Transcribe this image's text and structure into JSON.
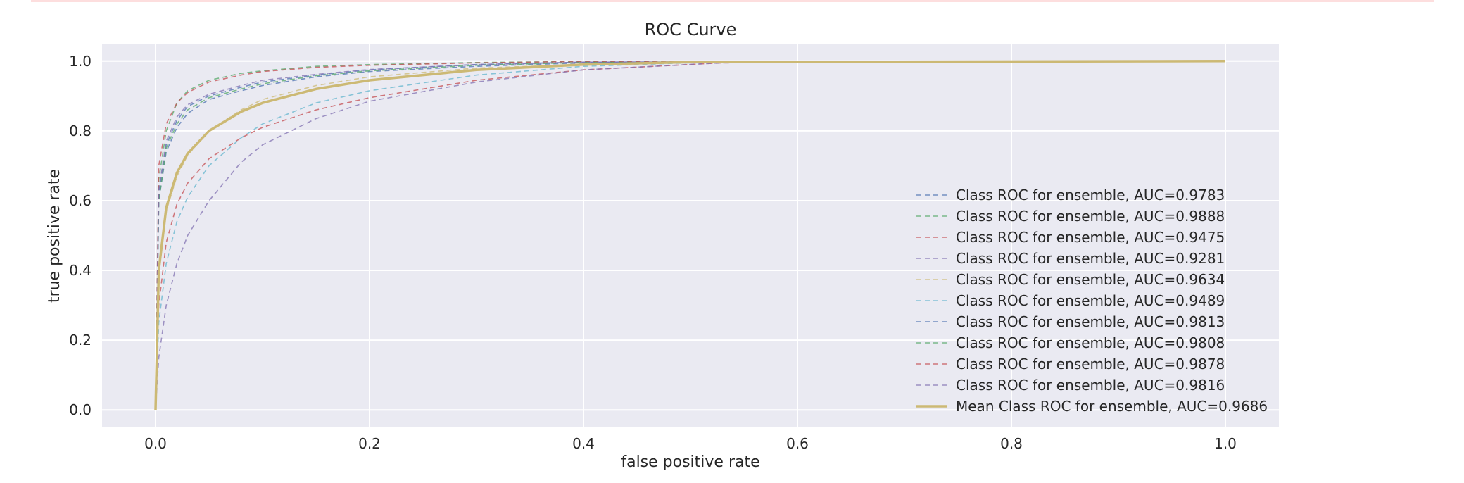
{
  "chart_data": {
    "type": "line",
    "title": "ROC Curve",
    "xlabel": "false positive rate",
    "ylabel": "true positive rate",
    "xlim": [
      -0.05,
      1.05
    ],
    "ylim": [
      -0.05,
      1.05
    ],
    "xticks": [
      0.0,
      0.2,
      0.4,
      0.6,
      0.8,
      1.0
    ],
    "yticks": [
      0.0,
      0.2,
      0.4,
      0.6,
      0.8,
      1.0
    ],
    "xtick_labels": [
      "0.0",
      "0.2",
      "0.4",
      "0.6",
      "0.8",
      "1.0"
    ],
    "ytick_labels": [
      "0.0",
      "0.2",
      "0.4",
      "0.6",
      "0.8",
      "1.0"
    ],
    "grid": true,
    "background": "#eaeaf2",
    "legend_position": "lower-right",
    "series": [
      {
        "name": "Class ROC for ensemble, AUC=0.9783",
        "color": "#4c72b0",
        "style": "dashed",
        "x": [
          0,
          0.003,
          0.01,
          0.02,
          0.03,
          0.05,
          0.08,
          0.1,
          0.15,
          0.2,
          0.3,
          0.4,
          0.5,
          1.0
        ],
        "y": [
          0,
          0.6,
          0.74,
          0.81,
          0.85,
          0.89,
          0.915,
          0.93,
          0.955,
          0.97,
          0.985,
          0.995,
          0.998,
          1.0
        ]
      },
      {
        "name": "Class ROC for ensemble, AUC=0.9888",
        "color": "#55a868",
        "style": "dashed",
        "x": [
          0,
          0.003,
          0.01,
          0.02,
          0.03,
          0.05,
          0.08,
          0.1,
          0.15,
          0.2,
          0.3,
          0.4,
          1.0
        ],
        "y": [
          0,
          0.66,
          0.8,
          0.88,
          0.915,
          0.945,
          0.965,
          0.972,
          0.985,
          0.99,
          0.996,
          0.999,
          1.0
        ]
      },
      {
        "name": "Class ROC for ensemble, AUC=0.9475",
        "color": "#c44e52",
        "style": "dashed",
        "x": [
          0,
          0.003,
          0.01,
          0.02,
          0.03,
          0.05,
          0.08,
          0.1,
          0.15,
          0.2,
          0.3,
          0.4,
          0.53,
          1.0
        ],
        "y": [
          0,
          0.3,
          0.48,
          0.59,
          0.65,
          0.72,
          0.78,
          0.81,
          0.86,
          0.895,
          0.945,
          0.975,
          0.995,
          1.0
        ]
      },
      {
        "name": "Class ROC for ensemble, AUC=0.9281",
        "color": "#8172b2",
        "style": "dashed",
        "x": [
          0,
          0.003,
          0.01,
          0.02,
          0.03,
          0.05,
          0.08,
          0.1,
          0.15,
          0.2,
          0.3,
          0.4,
          0.53,
          1.0
        ],
        "y": [
          0,
          0.15,
          0.3,
          0.42,
          0.5,
          0.6,
          0.71,
          0.76,
          0.835,
          0.885,
          0.94,
          0.975,
          0.995,
          1.0
        ]
      },
      {
        "name": "Class ROC for ensemble, AUC=0.9634",
        "color": "#ccb974",
        "style": "dashed",
        "x": [
          0,
          0.003,
          0.01,
          0.02,
          0.03,
          0.05,
          0.08,
          0.1,
          0.15,
          0.2,
          0.3,
          0.4,
          0.5,
          1.0
        ],
        "y": [
          0,
          0.4,
          0.57,
          0.67,
          0.73,
          0.8,
          0.86,
          0.89,
          0.93,
          0.955,
          0.98,
          0.99,
          0.997,
          1.0
        ]
      },
      {
        "name": "Class ROC for ensemble, AUC=0.9489",
        "color": "#64b5cd",
        "style": "dashed",
        "x": [
          0,
          0.003,
          0.01,
          0.02,
          0.03,
          0.05,
          0.08,
          0.1,
          0.15,
          0.2,
          0.3,
          0.4,
          0.5,
          1.0
        ],
        "y": [
          0,
          0.25,
          0.42,
          0.54,
          0.61,
          0.7,
          0.78,
          0.82,
          0.88,
          0.915,
          0.96,
          0.985,
          0.995,
          1.0
        ]
      },
      {
        "name": "Class ROC for ensemble, AUC=0.9813",
        "color": "#4c72b0",
        "style": "dashed",
        "x": [
          0,
          0.003,
          0.01,
          0.02,
          0.03,
          0.05,
          0.08,
          0.1,
          0.15,
          0.2,
          0.3,
          0.4,
          1.0
        ],
        "y": [
          0,
          0.62,
          0.76,
          0.83,
          0.87,
          0.9,
          0.925,
          0.94,
          0.96,
          0.975,
          0.99,
          0.997,
          1.0
        ]
      },
      {
        "name": "Class ROC for ensemble, AUC=0.9808",
        "color": "#55a868",
        "style": "dashed",
        "x": [
          0,
          0.003,
          0.01,
          0.02,
          0.03,
          0.05,
          0.08,
          0.1,
          0.15,
          0.2,
          0.3,
          0.4,
          1.0
        ],
        "y": [
          0,
          0.6,
          0.75,
          0.82,
          0.86,
          0.895,
          0.92,
          0.935,
          0.958,
          0.972,
          0.988,
          0.996,
          1.0
        ]
      },
      {
        "name": "Class ROC for ensemble, AUC=0.9878",
        "color": "#c44e52",
        "style": "dashed",
        "x": [
          0,
          0.003,
          0.01,
          0.02,
          0.03,
          0.05,
          0.08,
          0.1,
          0.15,
          0.2,
          0.3,
          0.4,
          1.0
        ],
        "y": [
          0,
          0.7,
          0.82,
          0.88,
          0.91,
          0.94,
          0.96,
          0.97,
          0.982,
          0.988,
          0.995,
          0.999,
          1.0
        ]
      },
      {
        "name": "Class ROC for ensemble, AUC=0.9816",
        "color": "#8172b2",
        "style": "dashed",
        "x": [
          0,
          0.003,
          0.01,
          0.02,
          0.03,
          0.05,
          0.08,
          0.1,
          0.15,
          0.2,
          0.3,
          0.4,
          1.0
        ],
        "y": [
          0,
          0.63,
          0.77,
          0.84,
          0.875,
          0.905,
          0.93,
          0.945,
          0.962,
          0.976,
          0.99,
          0.997,
          1.0
        ]
      },
      {
        "name": "Mean Class ROC for ensemble, AUC=0.9686",
        "color": "#ccb974",
        "style": "solid",
        "x": [
          0,
          0.003,
          0.01,
          0.02,
          0.03,
          0.05,
          0.08,
          0.1,
          0.15,
          0.2,
          0.3,
          0.4,
          0.5,
          1.0
        ],
        "y": [
          0,
          0.4,
          0.58,
          0.68,
          0.735,
          0.8,
          0.855,
          0.88,
          0.92,
          0.945,
          0.975,
          0.99,
          0.997,
          1.0
        ]
      }
    ]
  }
}
